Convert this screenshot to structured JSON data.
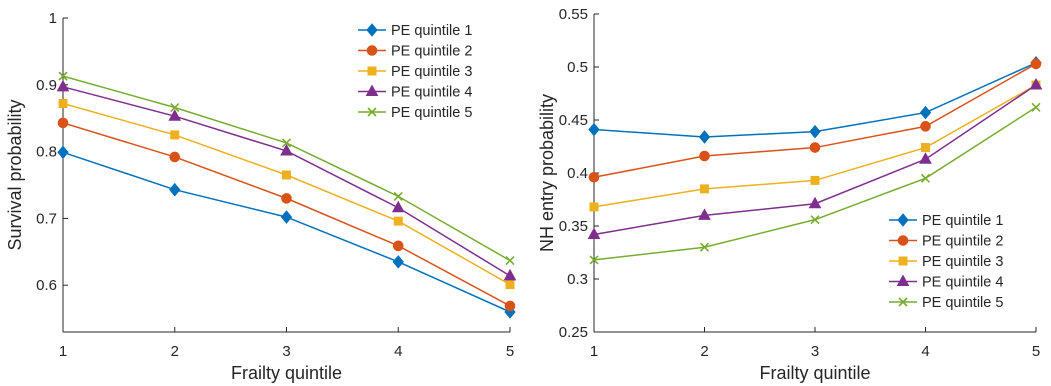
{
  "chart_data": [
    {
      "type": "line",
      "xlabel": "Frailty quintile",
      "ylabel": "Survival probability",
      "x": [
        1,
        2,
        3,
        4,
        5
      ],
      "xlim": [
        1,
        5
      ],
      "ylim": [
        0.53,
        1.0
      ],
      "yticks": [
        0.6,
        0.7,
        0.8,
        0.9,
        1
      ],
      "ytick_labels": [
        "0.6",
        "0.7",
        "0.8",
        "0.9",
        "1"
      ],
      "xtick_labels": [
        "1",
        "2",
        "3",
        "4",
        "5"
      ],
      "legend": "top-right",
      "series": [
        {
          "name": "PE quintile 1",
          "values": [
            0.799,
            0.743,
            0.702,
            0.635,
            0.56
          ]
        },
        {
          "name": "PE quintile 2",
          "values": [
            0.843,
            0.792,
            0.73,
            0.659,
            0.569
          ]
        },
        {
          "name": "PE quintile 3",
          "values": [
            0.872,
            0.825,
            0.765,
            0.696,
            0.601
          ]
        },
        {
          "name": "PE quintile 4",
          "values": [
            0.897,
            0.853,
            0.801,
            0.716,
            0.614
          ]
        },
        {
          "name": "PE quintile 5",
          "values": [
            0.913,
            0.866,
            0.813,
            0.733,
            0.637
          ]
        }
      ]
    },
    {
      "type": "line",
      "xlabel": "Frailty quintile",
      "ylabel": "NH entry probability",
      "x": [
        1,
        2,
        3,
        4,
        5
      ],
      "xlim": [
        1,
        5
      ],
      "ylim": [
        0.25,
        0.55
      ],
      "yticks": [
        0.25,
        0.3,
        0.35,
        0.4,
        0.45,
        0.5,
        0.55
      ],
      "ytick_labels": [
        "0.25",
        "0.3",
        "0.35",
        "0.4",
        "0.45",
        "0.5",
        "0.55"
      ],
      "xtick_labels": [
        "1",
        "2",
        "3",
        "4",
        "5"
      ],
      "legend": "bottom-right",
      "series": [
        {
          "name": "PE quintile 1",
          "values": [
            0.441,
            0.434,
            0.439,
            0.457,
            0.504
          ]
        },
        {
          "name": "PE quintile 2",
          "values": [
            0.396,
            0.416,
            0.424,
            0.444,
            0.503
          ]
        },
        {
          "name": "PE quintile 3",
          "values": [
            0.368,
            0.385,
            0.393,
            0.424,
            0.483
          ]
        },
        {
          "name": "PE quintile 4",
          "values": [
            0.342,
            0.36,
            0.371,
            0.413,
            0.483
          ]
        },
        {
          "name": "PE quintile 5",
          "values": [
            0.318,
            0.33,
            0.356,
            0.395,
            0.462
          ]
        }
      ]
    }
  ],
  "colors": [
    "#0072BD",
    "#D95319",
    "#EDB120",
    "#7E2F8E",
    "#77AC30"
  ],
  "markers": [
    "diamond",
    "circle",
    "square",
    "triangle",
    "x"
  ]
}
